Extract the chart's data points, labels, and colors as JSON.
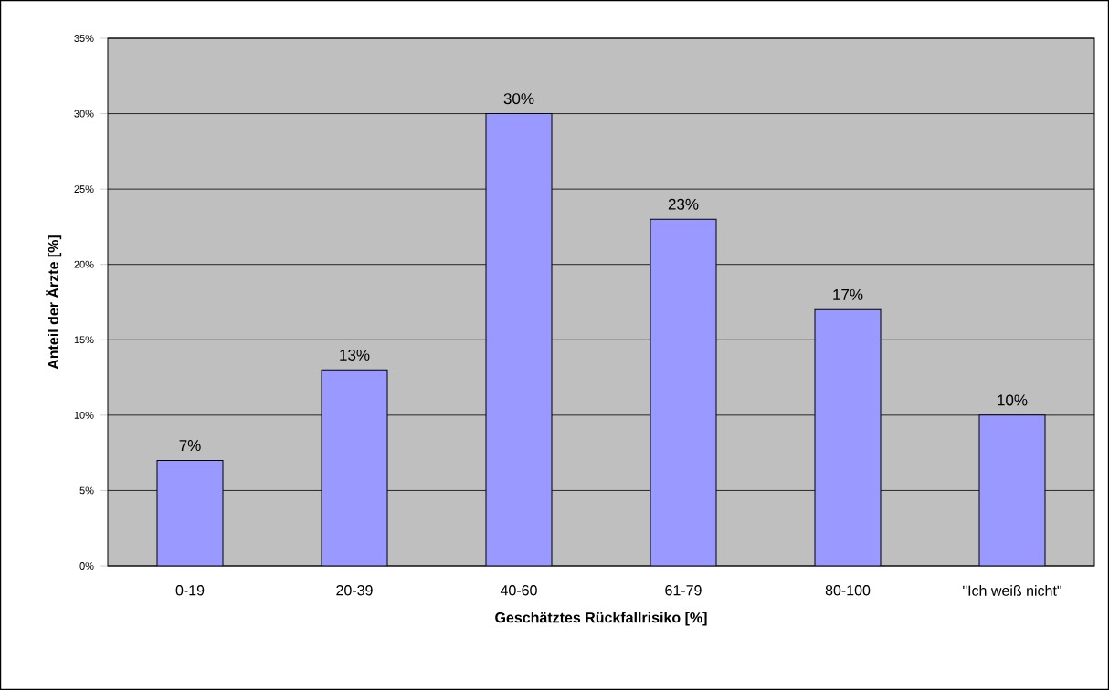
{
  "chart_data": {
    "type": "bar",
    "xlabel": "Geschätztes Rückfallrisiko [%]",
    "ylabel": "Anteil der Ärzte [%]",
    "categories": [
      "0-19",
      "20-39",
      "40-60",
      "61-79",
      "80-100",
      "\"Ich weiß nicht\""
    ],
    "values": [
      7,
      13,
      30,
      23,
      17,
      10
    ],
    "value_labels": [
      "7%",
      "13%",
      "30%",
      "23%",
      "17%",
      "10%"
    ],
    "color": "#9999ff",
    "ylim": [
      0,
      35
    ],
    "yticks": [
      {
        "value": 0,
        "label": "0%"
      },
      {
        "value": 5,
        "label": "5%"
      },
      {
        "value": 10,
        "label": "10%"
      },
      {
        "value": 15,
        "label": "15%"
      },
      {
        "value": 20,
        "label": "20%"
      },
      {
        "value": 25,
        "label": "25%"
      },
      {
        "value": 30,
        "label": "30%"
      },
      {
        "value": 35,
        "label": "35%"
      }
    ],
    "grid": "y"
  }
}
